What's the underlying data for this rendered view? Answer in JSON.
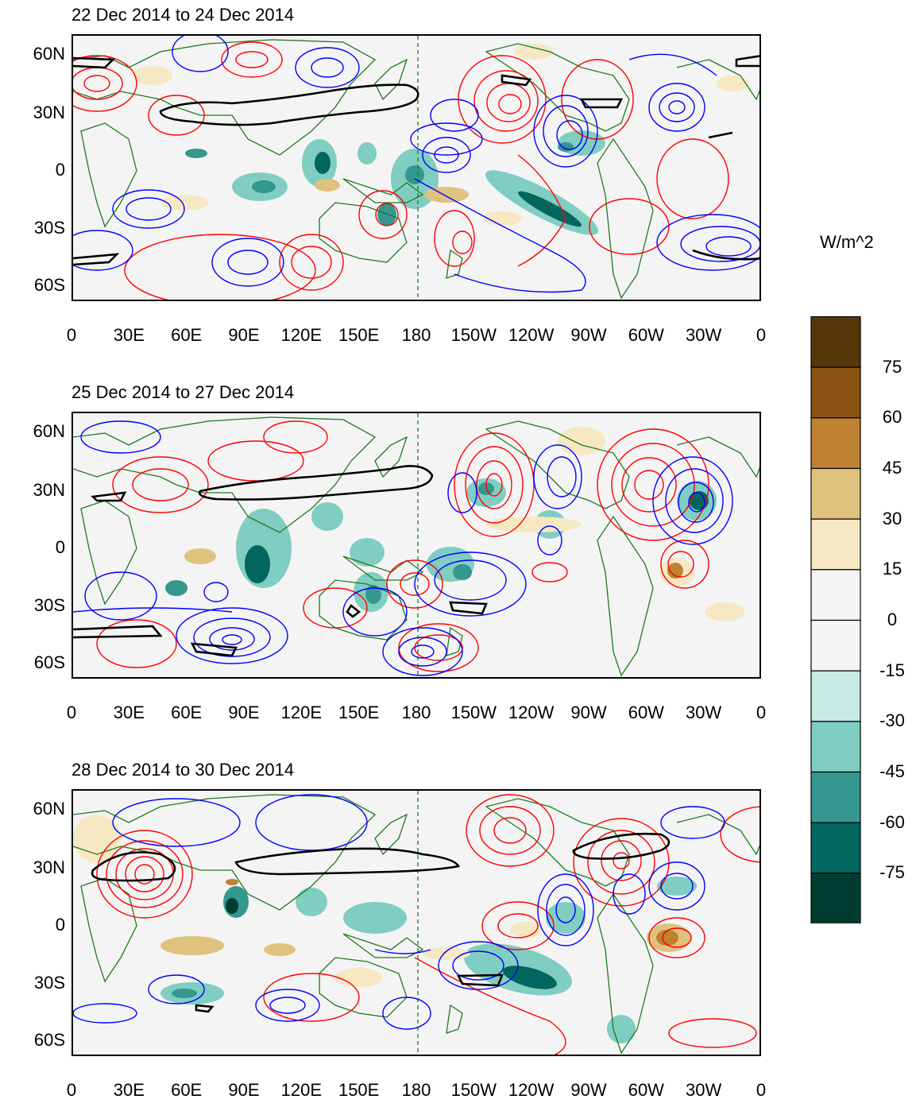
{
  "colorbar": {
    "unit": "W/m^2",
    "labels": [
      "75",
      "60",
      "45",
      "30",
      "15",
      "0",
      "-15",
      "-30",
      "-45",
      "-60",
      "-75"
    ],
    "colors": [
      "#553709",
      "#8a5213",
      "#bf8132",
      "#dfc27d",
      "#f6e8c3",
      "#f5f5f5",
      "#f5f5f5",
      "#c7eae5",
      "#80cdc1",
      "#35978f",
      "#01665e",
      "#003c30"
    ]
  },
  "axes": {
    "y_ticks": [
      "60N",
      "30N",
      "0",
      "30S",
      "60S"
    ],
    "x_ticks": [
      "0",
      "30E",
      "60E",
      "90E",
      "120E",
      "150E",
      "180",
      "150W",
      "120W",
      "90W",
      "60W",
      "30W",
      "0"
    ]
  },
  "panels": [
    {
      "title": "22 Dec 2014 to 24 Dec 2014"
    },
    {
      "title": "25 Dec 2014 to 27 Dec 2014"
    },
    {
      "title": "28 Dec 2014 to 30 Dec 2014"
    }
  ],
  "style": {
    "positive_contour": "#ff0000",
    "negative_contour": "#0000ff",
    "zero_contour": "#000000",
    "coast": "#1f7a1f",
    "dateline": "#1f7a1f"
  }
}
